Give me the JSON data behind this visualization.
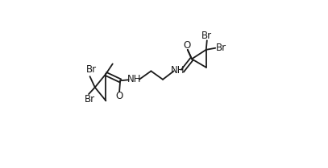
{
  "bg_color": "#ffffff",
  "line_color": "#1a1a1a",
  "text_color": "#1a1a1a",
  "figsize": [
    4.07,
    2.09
  ],
  "dpi": 100,
  "font_size": 8.5,
  "line_width": 1.3,
  "left_ring": {
    "lA": [
      0.155,
      0.56
    ],
    "lB": [
      0.09,
      0.48
    ],
    "lC": [
      0.155,
      0.4
    ]
  },
  "right_ring": {
    "rA": [
      0.72,
      0.52
    ],
    "rB": [
      0.795,
      0.45
    ],
    "rC": [
      0.72,
      0.38
    ]
  }
}
